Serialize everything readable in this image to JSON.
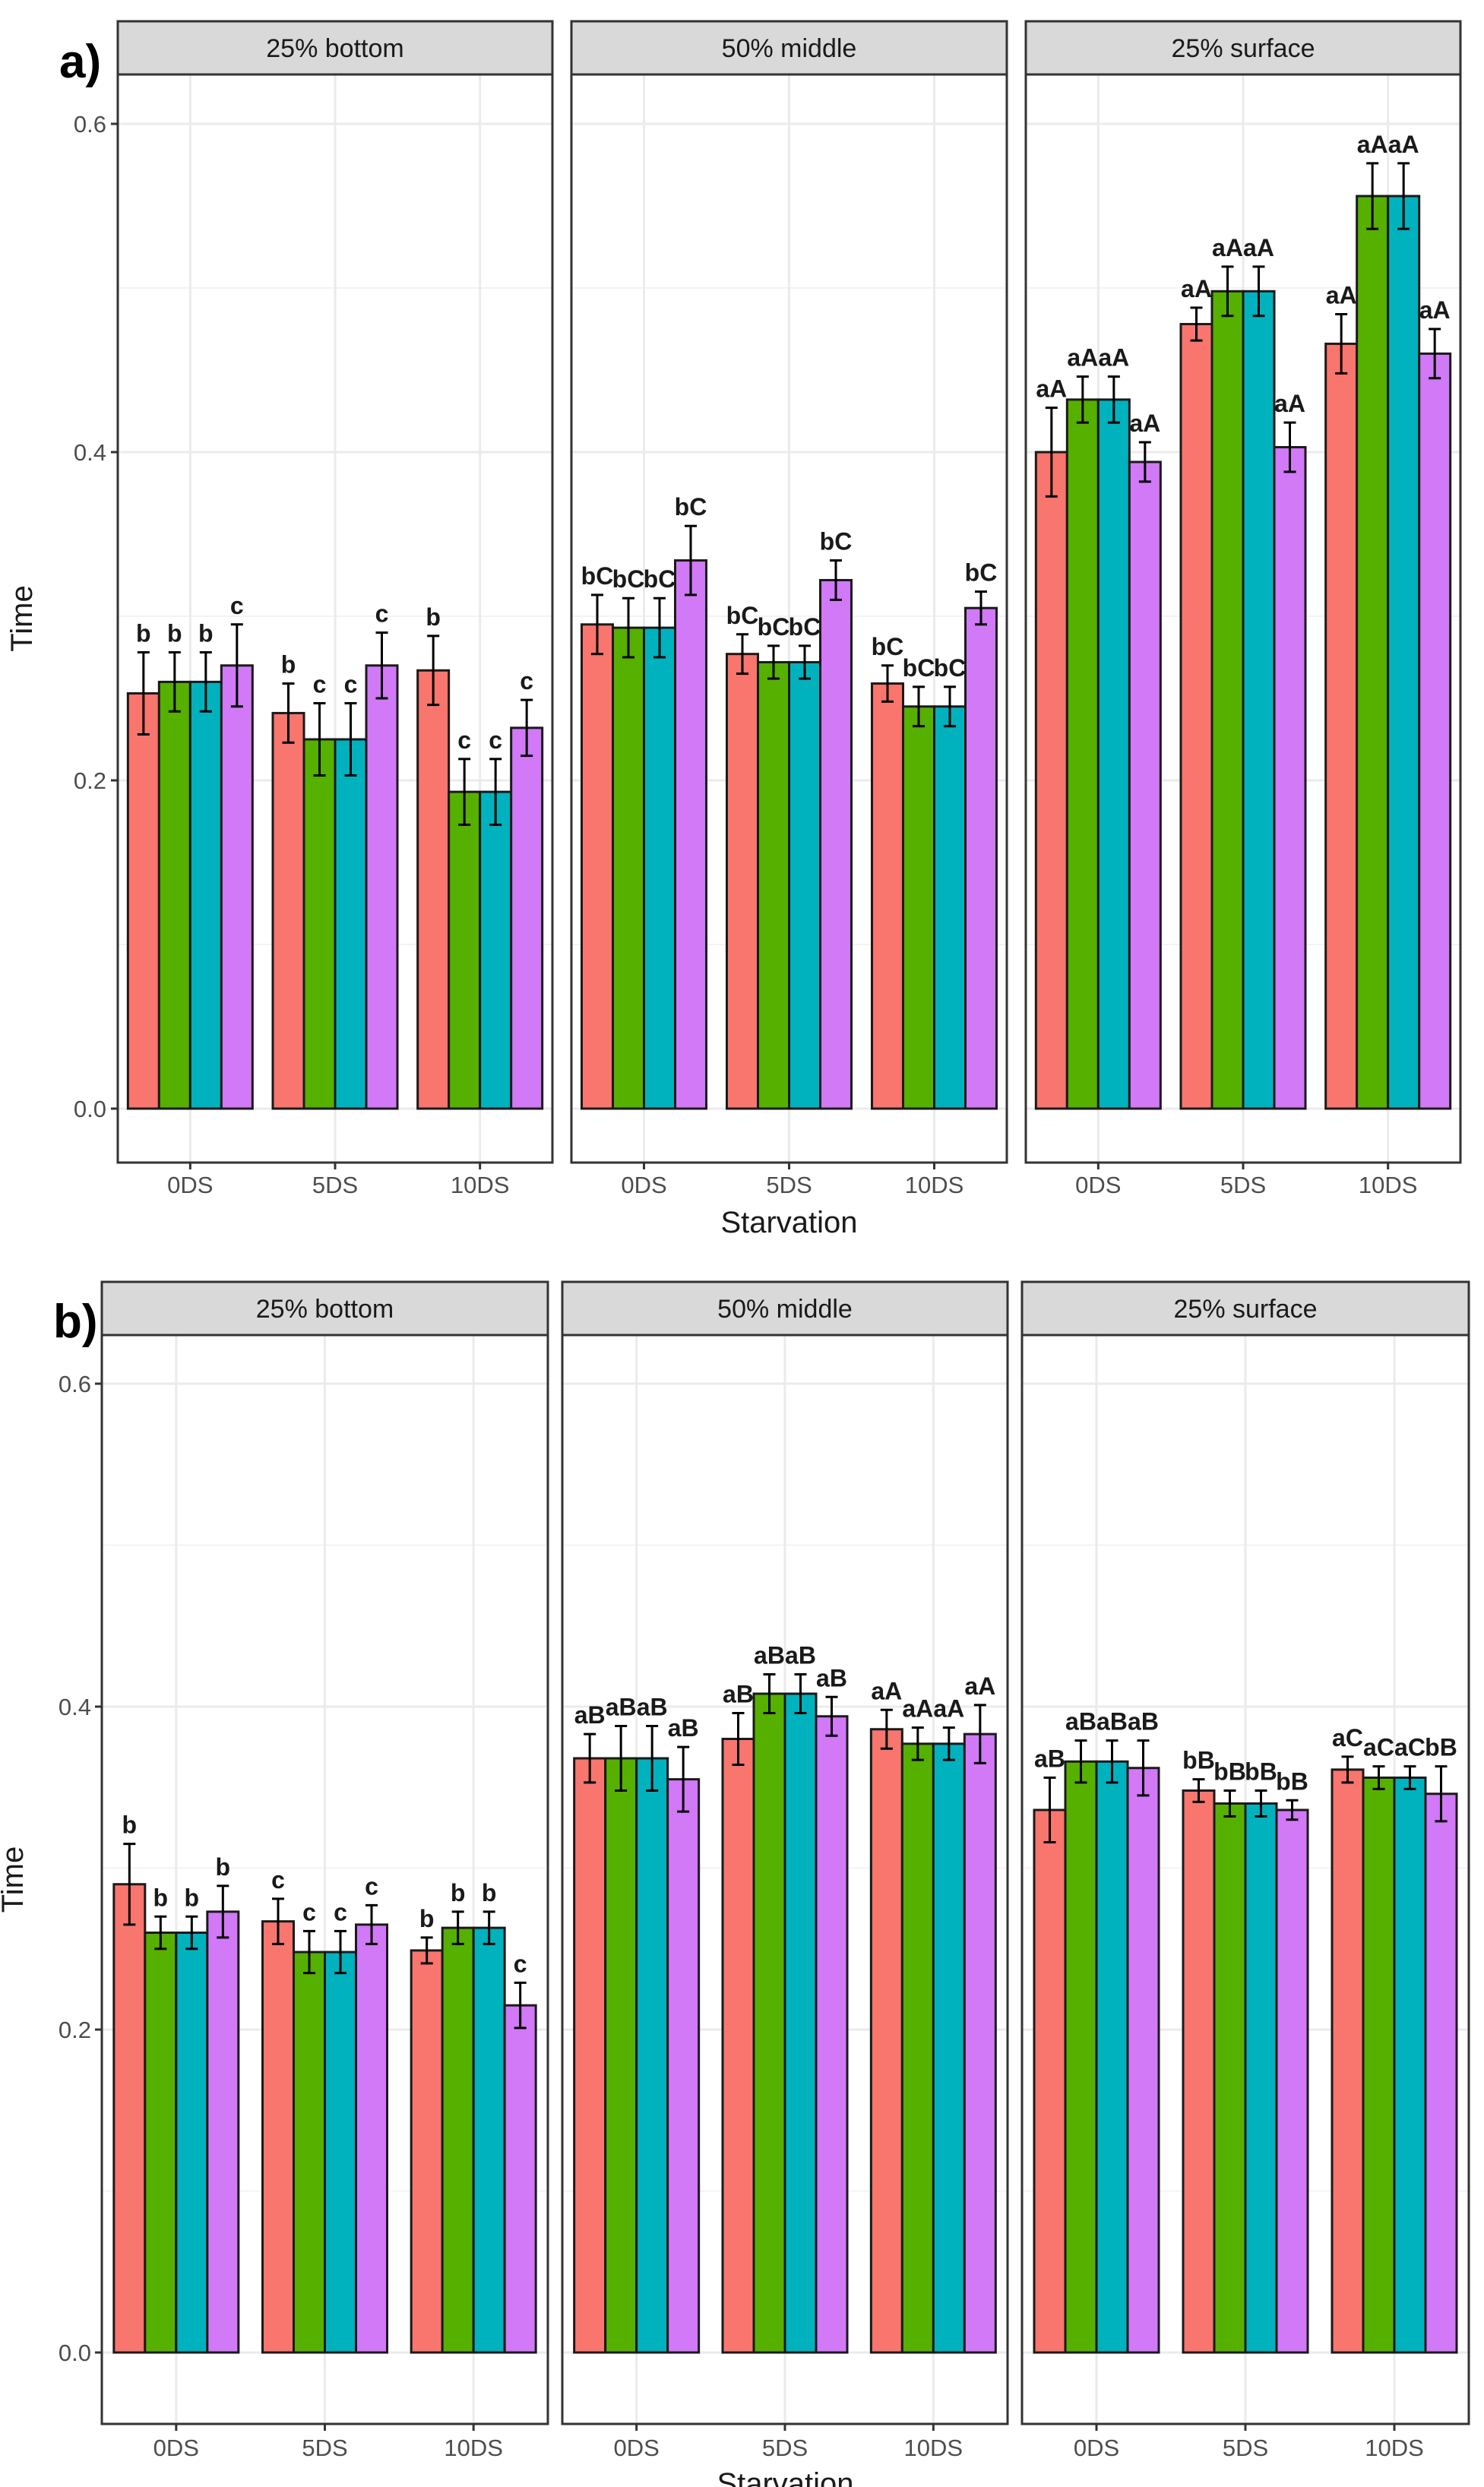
{
  "chart_data": [
    {
      "type": "bar",
      "panel_label": "a)",
      "xlabel": "Starvation",
      "ylabel": "Time",
      "ylim": [
        0,
        0.6
      ],
      "y_ticks": [
        "0.0",
        "0.2",
        "0.4",
        "0.6"
      ],
      "categories": [
        "0DS",
        "5DS",
        "10DS"
      ],
      "series_colors": [
        "#f8766d",
        "#56b000",
        "#00b2be",
        "#d179f6"
      ],
      "facets": [
        {
          "title": "25% bottom",
          "groups": [
            {
              "category": "0DS",
              "values": [
                0.253,
                0.26,
                0.26,
                0.27
              ],
              "errors": [
                0.025,
                0.018,
                0.018,
                0.025
              ],
              "labels": [
                "b",
                "b",
                "b",
                "c"
              ]
            },
            {
              "category": "5DS",
              "values": [
                0.241,
                0.225,
                0.225,
                0.27
              ],
              "errors": [
                0.018,
                0.022,
                0.022,
                0.02
              ],
              "labels": [
                "b",
                "c",
                "c",
                "c"
              ]
            },
            {
              "category": "10DS",
              "values": [
                0.267,
                0.193,
                0.193,
                0.232
              ],
              "errors": [
                0.021,
                0.02,
                0.02,
                0.017
              ],
              "labels": [
                "b",
                "c",
                "c",
                "c"
              ]
            }
          ]
        },
        {
          "title": "50% middle",
          "groups": [
            {
              "category": "0DS",
              "values": [
                0.295,
                0.293,
                0.293,
                0.334
              ],
              "errors": [
                0.018,
                0.018,
                0.018,
                0.021
              ],
              "labels": [
                "bC",
                "bC",
                "bC",
                "bC"
              ]
            },
            {
              "category": "5DS",
              "values": [
                0.277,
                0.272,
                0.272,
                0.322
              ],
              "errors": [
                0.012,
                0.01,
                0.01,
                0.012
              ],
              "labels": [
                "bC",
                "bC",
                "bC",
                "bC"
              ]
            },
            {
              "category": "10DS",
              "values": [
                0.259,
                0.245,
                0.245,
                0.305
              ],
              "errors": [
                0.011,
                0.012,
                0.012,
                0.01
              ],
              "labels": [
                "bC",
                "bC",
                "bC",
                "bC"
              ]
            }
          ]
        },
        {
          "title": "25% surface",
          "groups": [
            {
              "category": "0DS",
              "values": [
                0.4,
                0.432,
                0.432,
                0.394
              ],
              "errors": [
                0.027,
                0.014,
                0.014,
                0.012
              ],
              "labels": [
                "aA",
                "aA",
                "aA",
                "aA"
              ]
            },
            {
              "category": "5DS",
              "values": [
                0.478,
                0.498,
                0.498,
                0.403
              ],
              "errors": [
                0.01,
                0.015,
                0.015,
                0.015
              ],
              "labels": [
                "aA",
                "aA",
                "aA",
                "aA"
              ]
            },
            {
              "category": "10DS",
              "values": [
                0.466,
                0.556,
                0.556,
                0.46
              ],
              "errors": [
                0.018,
                0.02,
                0.02,
                0.015
              ],
              "labels": [
                "aA",
                "aA",
                "aA",
                "aA"
              ]
            }
          ]
        }
      ]
    },
    {
      "type": "bar",
      "panel_label": "b)",
      "xlabel": "Starvation",
      "ylabel": "Time",
      "ylim": [
        0,
        0.6
      ],
      "y_ticks": [
        "0.0",
        "0.2",
        "0.4",
        "0.6"
      ],
      "categories": [
        "0DS",
        "5DS",
        "10DS"
      ],
      "series_colors": [
        "#f8766d",
        "#56b000",
        "#00b2be",
        "#d179f6"
      ],
      "facets": [
        {
          "title": "25% bottom",
          "groups": [
            {
              "category": "0DS",
              "values": [
                0.29,
                0.26,
                0.26,
                0.273
              ],
              "errors": [
                0.025,
                0.01,
                0.01,
                0.016
              ],
              "labels": [
                "b",
                "b",
                "b",
                "b"
              ]
            },
            {
              "category": "5DS",
              "values": [
                0.267,
                0.248,
                0.248,
                0.265
              ],
              "errors": [
                0.014,
                0.013,
                0.013,
                0.012
              ],
              "labels": [
                "c",
                "c",
                "c",
                "c"
              ]
            },
            {
              "category": "10DS",
              "values": [
                0.249,
                0.263,
                0.263,
                0.215
              ],
              "errors": [
                0.008,
                0.01,
                0.01,
                0.014
              ],
              "labels": [
                "b",
                "b",
                "b",
                "c"
              ]
            }
          ]
        },
        {
          "title": "50% middle",
          "groups": [
            {
              "category": "0DS",
              "values": [
                0.368,
                0.368,
                0.368,
                0.355
              ],
              "errors": [
                0.015,
                0.02,
                0.02,
                0.02
              ],
              "labels": [
                "aB",
                "aB",
                "aB",
                "aB"
              ]
            },
            {
              "category": "5DS",
              "values": [
                0.38,
                0.408,
                0.408,
                0.394
              ],
              "errors": [
                0.016,
                0.012,
                0.012,
                0.012
              ],
              "labels": [
                "aB",
                "aB",
                "aB",
                "aB"
              ]
            },
            {
              "category": "10DS",
              "values": [
                0.386,
                0.377,
                0.377,
                0.383
              ],
              "errors": [
                0.012,
                0.01,
                0.01,
                0.018
              ],
              "labels": [
                "aA",
                "aA",
                "aA",
                "aA"
              ]
            }
          ]
        },
        {
          "title": "25% surface",
          "groups": [
            {
              "category": "0DS",
              "values": [
                0.336,
                0.366,
                0.366,
                0.362
              ],
              "errors": [
                0.02,
                0.013,
                0.013,
                0.017
              ],
              "labels": [
                "aB",
                "aB",
                "aB",
                "aB"
              ]
            },
            {
              "category": "5DS",
              "values": [
                0.348,
                0.34,
                0.34,
                0.336
              ],
              "errors": [
                0.007,
                0.008,
                0.008,
                0.006
              ],
              "labels": [
                "bB",
                "bB",
                "bB",
                "bB"
              ]
            },
            {
              "category": "10DS",
              "values": [
                0.361,
                0.356,
                0.356,
                0.346
              ],
              "errors": [
                0.008,
                0.007,
                0.007,
                0.017
              ],
              "labels": [
                "aC",
                "aC",
                "aC",
                "bB"
              ]
            }
          ]
        }
      ]
    }
  ]
}
